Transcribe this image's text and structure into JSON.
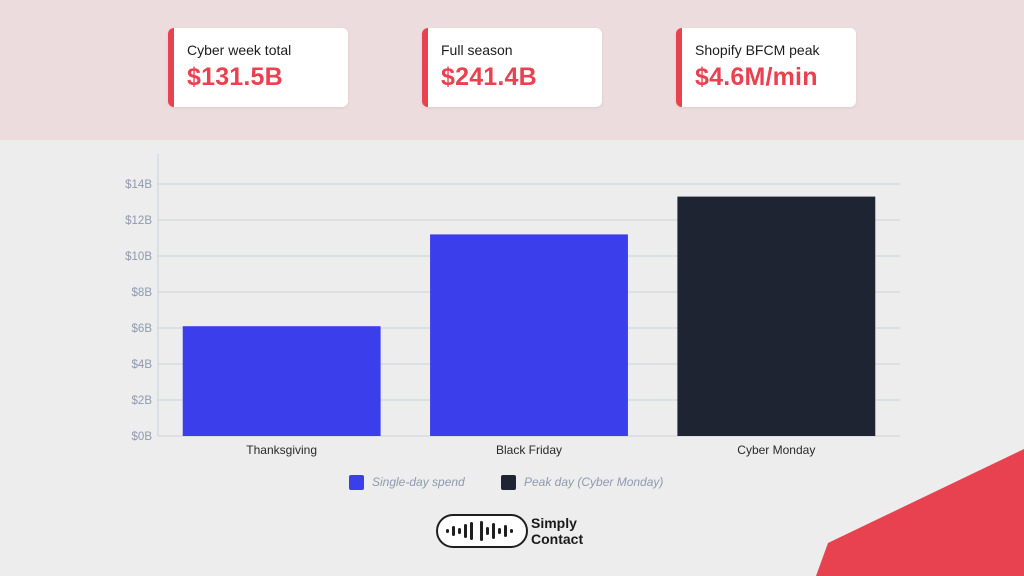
{
  "kpis": [
    {
      "label": "Cyber week total",
      "value": "$131.5B"
    },
    {
      "label": "Full season",
      "value": "$241.4B"
    },
    {
      "label": "Shopify BFCM peak",
      "value": "$4.6M/min"
    }
  ],
  "colors": {
    "accent": "#e8414f",
    "single_day": "#3a3feb",
    "peak_day": "#1e2432",
    "grid": "#c8d3e0",
    "band": "#eddcdd"
  },
  "chart_data": {
    "type": "bar",
    "categories": [
      "Thanksgiving",
      "Black Friday",
      "Cyber Monday"
    ],
    "values": [
      6.1,
      11.2,
      13.3
    ],
    "bar_series": [
      "single",
      "single",
      "peak"
    ],
    "y_ticks": [
      "$0B",
      "$2B",
      "$4B",
      "$6B",
      "$8B",
      "$10B",
      "$12B",
      "$14B"
    ],
    "ylim": [
      0,
      14
    ],
    "grid": true,
    "legend_position": "bottom",
    "legend": [
      {
        "key": "single",
        "name": "Single-day spend"
      },
      {
        "key": "peak",
        "name": "Peak day (Cyber Monday)"
      }
    ],
    "title": "",
    "xlabel": "",
    "ylabel": ""
  },
  "brand": {
    "line1": "Simply",
    "line2": "Contact",
    "icon": "sound-wave-icon"
  }
}
